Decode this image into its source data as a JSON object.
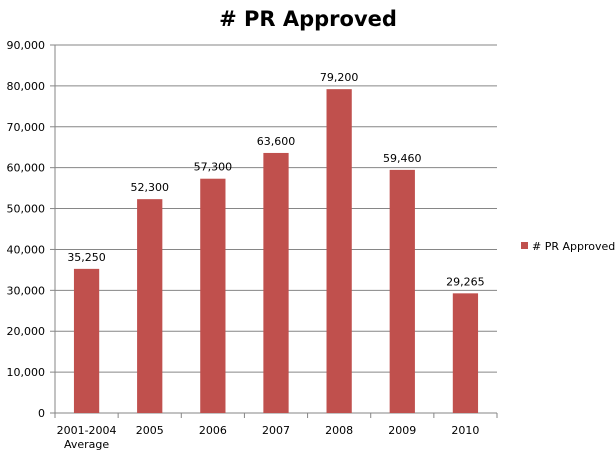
{
  "chart_data": {
    "type": "bar",
    "title": "# PR Approved",
    "categories": [
      [
        "2001-2004",
        "Average"
      ],
      [
        "2005"
      ],
      [
        "2006"
      ],
      [
        "2007"
      ],
      [
        "2008"
      ],
      [
        "2009"
      ],
      [
        "2010"
      ]
    ],
    "series": [
      {
        "name": "# PR Approved",
        "values": [
          35250,
          52300,
          57300,
          63600,
          79200,
          59460,
          29265
        ]
      }
    ],
    "data_labels": [
      "35,250",
      "52,300",
      "57,300",
      "63,600",
      "79,200",
      "59,460",
      "29,265"
    ],
    "y_ticks": [
      "0",
      "10,000",
      "20,000",
      "30,000",
      "40,000",
      "50,000",
      "60,000",
      "70,000",
      "80,000",
      "90,000"
    ],
    "ylim": [
      0,
      90000
    ],
    "y_step": 10000,
    "grid": true,
    "legend_position": "right",
    "xlabel": "",
    "ylabel": "",
    "colors": {
      "bar": "#c0504d",
      "grid": "#868686",
      "axis": "#868686"
    }
  }
}
